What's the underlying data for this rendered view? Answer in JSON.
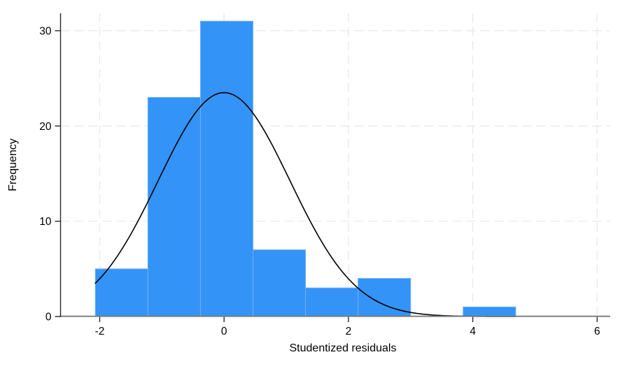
{
  "chart_data": {
    "type": "bar",
    "subtype": "histogram-with-normal-overlay",
    "title": "",
    "xlabel": "Studentized residuals",
    "ylabel": "Frequency",
    "x_ticks": [
      -2,
      0,
      2,
      4,
      6
    ],
    "y_ticks": [
      0,
      10,
      20,
      30
    ],
    "xlim": [
      -2.63,
      6.21
    ],
    "ylim": [
      0,
      31.83
    ],
    "grid": {
      "shown": true,
      "style": "dashed",
      "vertical_at": [
        -2,
        0,
        2,
        4,
        6
      ],
      "horizontal_at": [
        10,
        20,
        30
      ]
    },
    "bins": {
      "start": -2.07,
      "width": 0.845,
      "counts": [
        5,
        23,
        31,
        7,
        3,
        4,
        0,
        1
      ],
      "edges": [
        -2.07,
        -1.225,
        -0.38,
        0.465,
        1.31,
        2.155,
        3.0,
        3.845,
        4.69
      ]
    },
    "normal_overlay": {
      "mean": 0.0,
      "sd": 1.06,
      "peak_frequency": 23.5,
      "x_start": -2.07,
      "x_end": 4.69
    },
    "legend": {
      "shown": false
    },
    "colors": {
      "background": "#ffffff",
      "bar_fill": "#3393f7",
      "bar_stroke": "#74aef9",
      "curve": "#000000",
      "grid": "#e9e9e9",
      "y_axis": "#2b2b2b",
      "x_axis": "#7a7a7a",
      "tick": "#2b2b2b",
      "text": "#000000"
    }
  }
}
